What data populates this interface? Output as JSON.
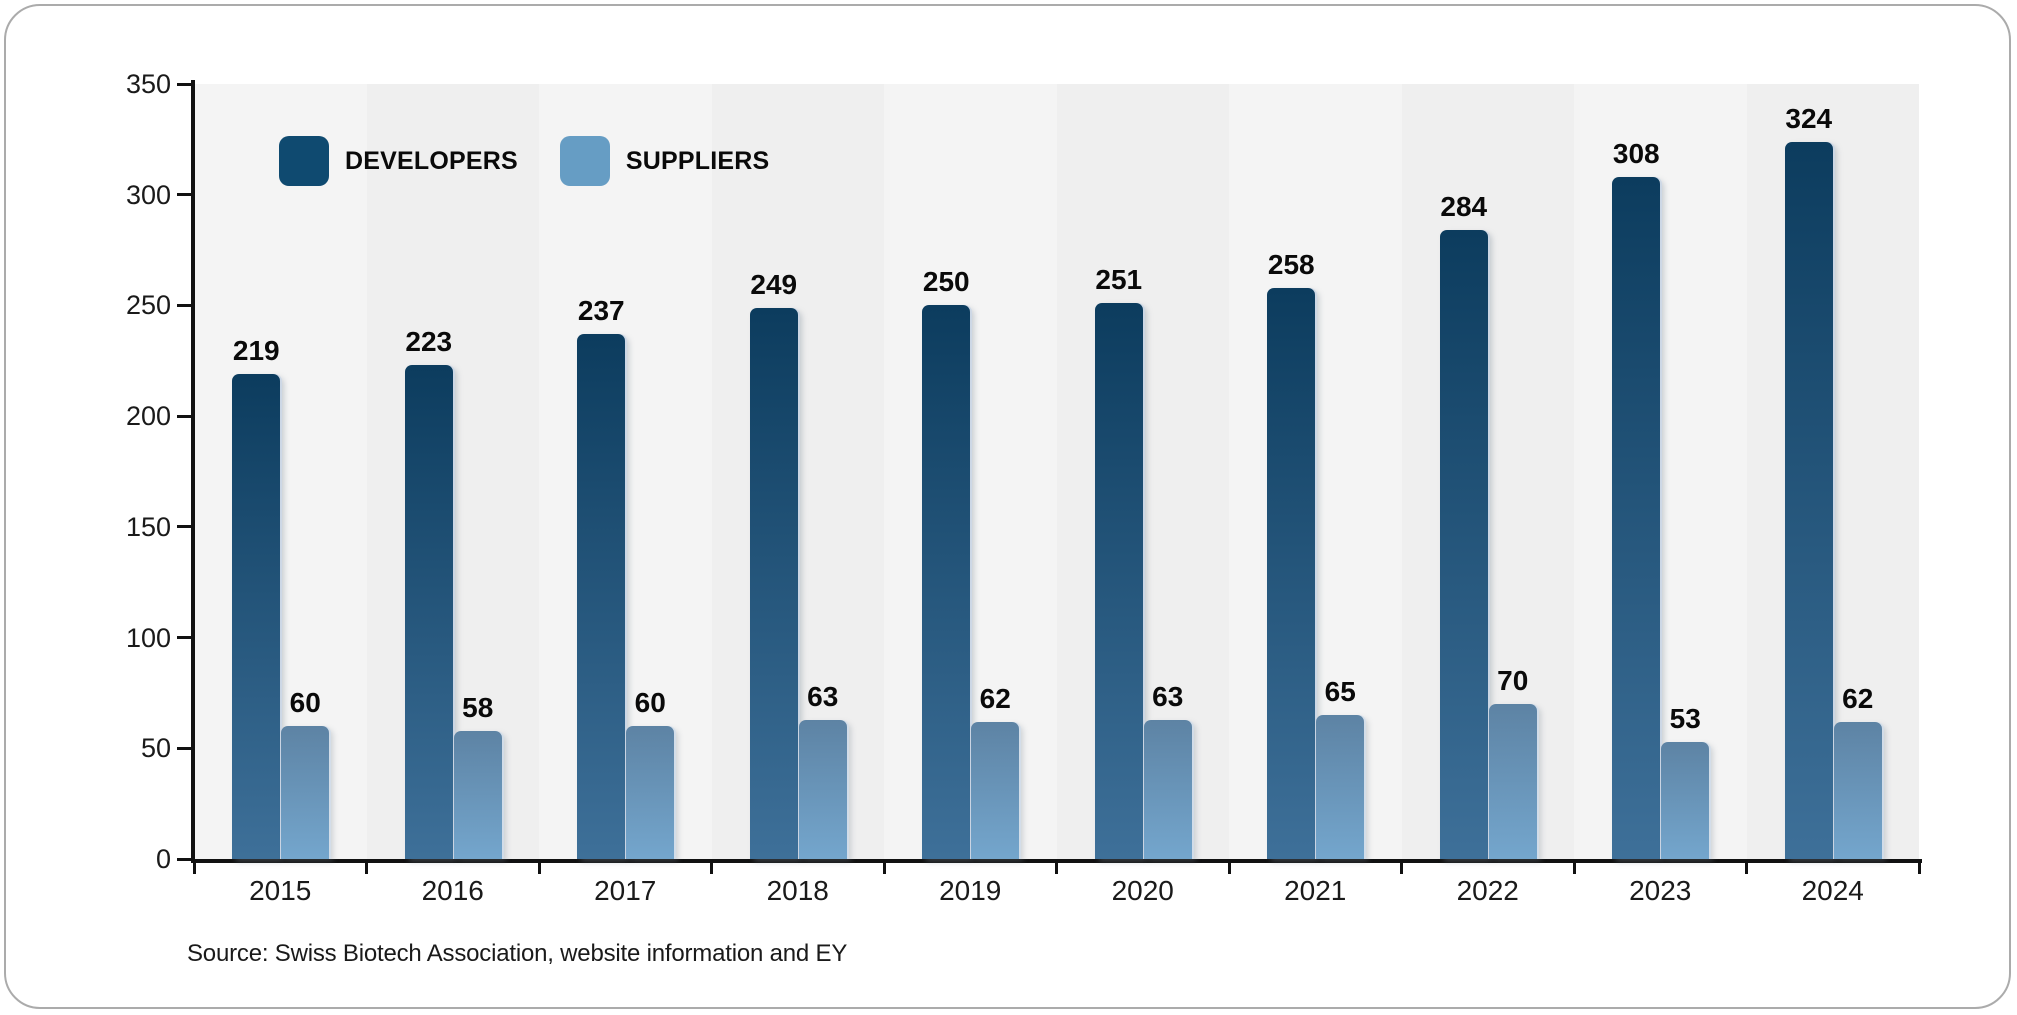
{
  "chart_data": {
    "type": "bar",
    "title": "",
    "categories": [
      "2015",
      "2016",
      "2017",
      "2018",
      "2019",
      "2020",
      "2021",
      "2022",
      "2023",
      "2024"
    ],
    "series": [
      {
        "name": "DEVELOPERS",
        "values": [
          219,
          223,
          237,
          249,
          250,
          251,
          258,
          284,
          308,
          324
        ],
        "color_top": "#0c3c5e",
        "color_bottom": "#3e7099",
        "legend_color": "#0f4a70"
      },
      {
        "name": "SUPPLIERS",
        "values": [
          60,
          58,
          60,
          63,
          62,
          63,
          65,
          70,
          53,
          62
        ],
        "color_top": "#5d83a4",
        "color_bottom": "#74a6cd",
        "legend_color": "#669dc4"
      }
    ],
    "ylim": [
      0,
      350
    ],
    "yticks": [
      0,
      50,
      100,
      150,
      200,
      250,
      300,
      350
    ],
    "xlabel": "",
    "ylabel": "",
    "grid": false,
    "legend_position": "top-left",
    "plot_bg_light": "#f4f4f4",
    "plot_bg_dark": "#efefef"
  },
  "source": {
    "label": "Source: Swiss Biotech Association, website information and EY"
  },
  "colors": {
    "axis": "#111111",
    "card_border": "#ababab",
    "value_label": "#0a0a0a"
  }
}
